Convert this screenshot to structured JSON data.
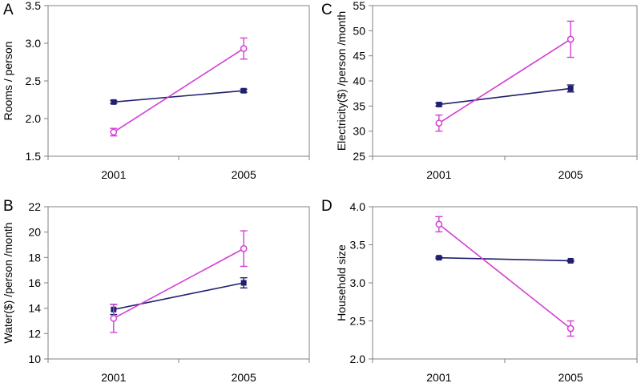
{
  "figure": {
    "colors": {
      "series_a": "#1f1f6e",
      "series_b": "#d43fd4",
      "axis": "#808080"
    }
  },
  "chart_data": [
    {
      "panel": "A",
      "type": "line",
      "ylabel": "Rooms / person",
      "categories": [
        "2001",
        "2005"
      ],
      "ylim": [
        1.5,
        3.5
      ],
      "yticks": [
        "1.5",
        "2.0",
        "2.5",
        "3.0",
        "3.5"
      ],
      "ytick_values": [
        1.5,
        2.0,
        2.5,
        3.0,
        3.5
      ],
      "series": [
        {
          "name": "series_a",
          "marker": "filled-square",
          "values": [
            2.22,
            2.37
          ],
          "errors": [
            0.02,
            0.02
          ]
        },
        {
          "name": "series_b",
          "marker": "open-circle",
          "values": [
            1.82,
            2.93
          ],
          "errors": [
            0.05,
            0.14
          ]
        }
      ]
    },
    {
      "panel": "C",
      "type": "line",
      "ylabel": "Electricity($) /person /month",
      "categories": [
        "2001",
        "2005"
      ],
      "ylim": [
        25,
        55
      ],
      "yticks": [
        "25",
        "30",
        "35",
        "40",
        "45",
        "50",
        "55"
      ],
      "ytick_values": [
        25,
        30,
        35,
        40,
        45,
        50,
        55
      ],
      "series": [
        {
          "name": "series_a",
          "marker": "filled-square",
          "values": [
            35.3,
            38.5
          ],
          "errors": [
            0.3,
            0.7
          ]
        },
        {
          "name": "series_b",
          "marker": "open-circle",
          "values": [
            31.6,
            48.3
          ],
          "errors": [
            1.6,
            3.6
          ]
        }
      ]
    },
    {
      "panel": "B",
      "type": "line",
      "ylabel": "Water($) /person /month",
      "categories": [
        "2001",
        "2005"
      ],
      "ylim": [
        10,
        22
      ],
      "yticks": [
        "10",
        "12",
        "14",
        "16",
        "18",
        "20",
        "22"
      ],
      "ytick_values": [
        10,
        12,
        14,
        16,
        18,
        20,
        22
      ],
      "series": [
        {
          "name": "series_a",
          "marker": "filled-square",
          "values": [
            13.9,
            16.0
          ],
          "errors": [
            0.4,
            0.4
          ]
        },
        {
          "name": "series_b",
          "marker": "open-circle",
          "values": [
            13.2,
            18.7
          ],
          "errors": [
            1.1,
            1.4
          ]
        }
      ]
    },
    {
      "panel": "D",
      "type": "line",
      "ylabel": "Household size",
      "categories": [
        "2001",
        "2005"
      ],
      "ylim": [
        2.0,
        4.0
      ],
      "yticks": [
        "2.0",
        "2.5",
        "3.0",
        "3.5",
        "4.0"
      ],
      "ytick_values": [
        2.0,
        2.5,
        3.0,
        3.5,
        4.0
      ],
      "series": [
        {
          "name": "series_a",
          "marker": "filled-square",
          "values": [
            3.33,
            3.29
          ],
          "errors": [
            0.01,
            0.01
          ]
        },
        {
          "name": "series_b",
          "marker": "open-circle",
          "values": [
            3.77,
            2.4
          ],
          "errors": [
            0.1,
            0.1
          ]
        }
      ]
    }
  ]
}
